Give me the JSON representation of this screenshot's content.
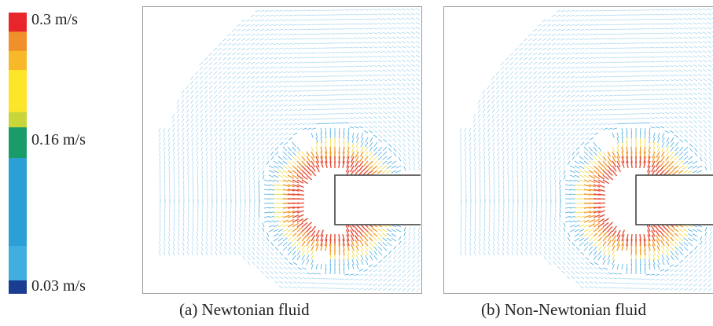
{
  "colorbar": {
    "labels": {
      "max": "0.3 m/s",
      "mid": "0.16 m/s",
      "min": "0.03 m/s"
    },
    "stops": [
      "#e8252a",
      "#f0902a",
      "#f7b92a",
      "#fde52a",
      "#c8d63a",
      "#1a9b6a",
      "#2ba0d6",
      "#41aee0",
      "#1a3d91"
    ]
  },
  "panels": [
    {
      "caption": "(a) Newtonian fluid"
    },
    {
      "caption": "(b) Non-Newtonian fluid"
    }
  ],
  "field_colors": {
    "low": "#86c7ea",
    "mid": "#41a8e0",
    "high_yellow": "#f2d82a",
    "high_orange": "#f29a2a",
    "max_red": "#e5462f"
  }
}
